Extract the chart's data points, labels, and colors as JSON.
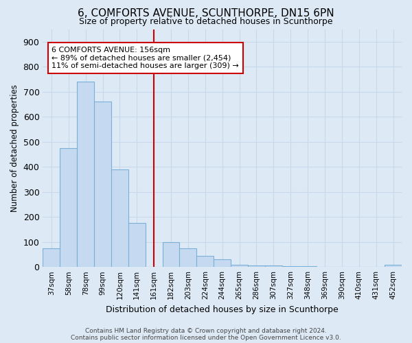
{
  "title": "6, COMFORTS AVENUE, SCUNTHORPE, DN15 6PN",
  "subtitle": "Size of property relative to detached houses in Scunthorpe",
  "xlabel": "Distribution of detached houses by size in Scunthorpe",
  "ylabel": "Number of detached properties",
  "categories": [
    "37sqm",
    "58sqm",
    "78sqm",
    "99sqm",
    "120sqm",
    "141sqm",
    "161sqm",
    "182sqm",
    "203sqm",
    "224sqm",
    "244sqm",
    "265sqm",
    "286sqm",
    "307sqm",
    "327sqm",
    "348sqm",
    "369sqm",
    "390sqm",
    "410sqm",
    "431sqm",
    "452sqm"
  ],
  "values": [
    75,
    475,
    740,
    660,
    390,
    175,
    0,
    100,
    75,
    45,
    30,
    10,
    5,
    5,
    3,
    2,
    1,
    1,
    1,
    0,
    8
  ],
  "bar_color": "#c5daf0",
  "bar_edge_color": "#7ab0d8",
  "grid_color": "#c8d8ea",
  "background_color": "#ddeaf6",
  "vline_x": 6,
  "vline_color": "#cc0000",
  "annotation_text": "6 COMFORTS AVENUE: 156sqm\n← 89% of detached houses are smaller (2,454)\n11% of semi-detached houses are larger (309) →",
  "annotation_box_facecolor": "#ffffff",
  "annotation_box_edgecolor": "#cc0000",
  "ylim": [
    0,
    950
  ],
  "yticks": [
    0,
    100,
    200,
    300,
    400,
    500,
    600,
    700,
    800,
    900
  ],
  "footnote1": "Contains HM Land Registry data © Crown copyright and database right 2024.",
  "footnote2": "Contains public sector information licensed under the Open Government Licence v3.0."
}
